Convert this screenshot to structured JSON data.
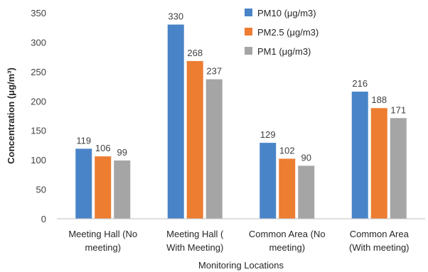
{
  "chart_data": {
    "type": "bar",
    "title": "",
    "xlabel": "Monitoring Locations",
    "ylabel": "Concentration (μg/m³)",
    "ylim": [
      0,
      350
    ],
    "yticks": [
      0,
      50,
      100,
      150,
      200,
      250,
      300,
      350
    ],
    "grid": false,
    "legend_position": "top-right",
    "categories": [
      [
        "Meeting Hall (No",
        "meeting)"
      ],
      [
        "Meeting Hall (",
        "With Meeting)"
      ],
      [
        "Common Area (No",
        "meeting)"
      ],
      [
        "Common Area",
        "(With meeting)"
      ]
    ],
    "series": [
      {
        "name": "PM10 (μg/m3)",
        "color": "#4a84c8",
        "values": [
          119,
          330,
          129,
          216
        ]
      },
      {
        "name": "PM2.5 (μg/m3)",
        "color": "#ed7d31",
        "values": [
          106,
          268,
          102,
          188
        ]
      },
      {
        "name": "PM1 (μg/m3)",
        "color": "#a5a5a5",
        "values": [
          99,
          237,
          90,
          171
        ]
      }
    ]
  }
}
